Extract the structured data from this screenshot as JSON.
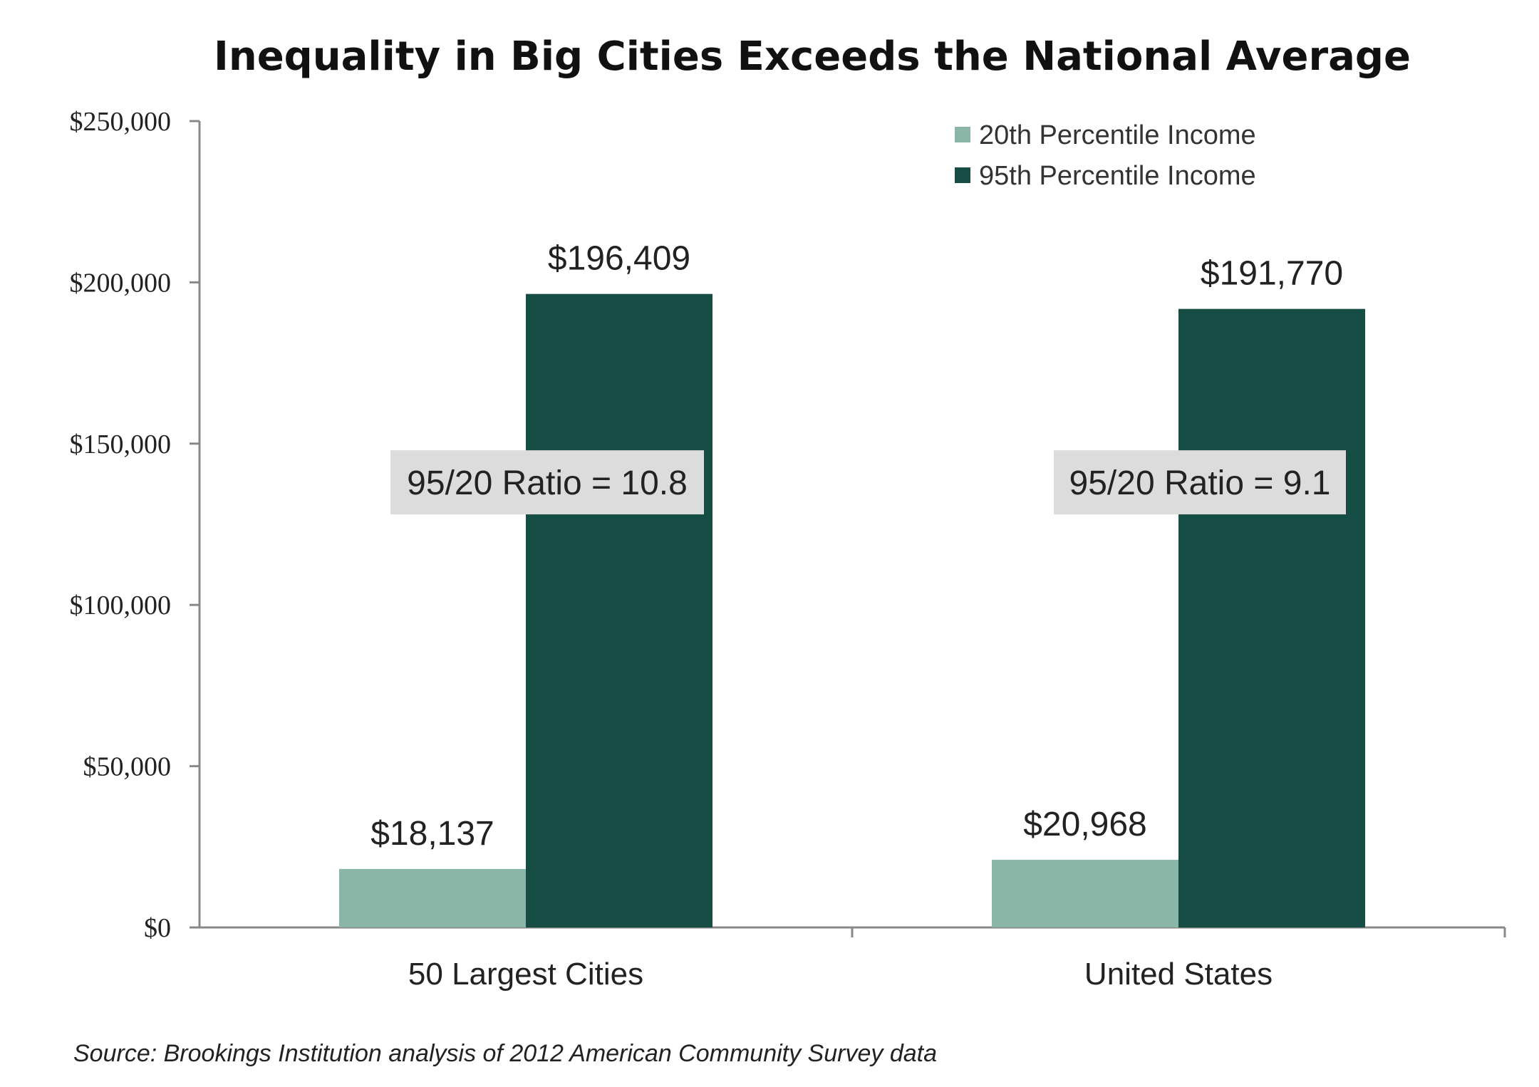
{
  "chart_data": {
    "type": "bar",
    "title": "Inequality in Big Cities Exceeds the National Average",
    "categories": [
      "50 Largest Cities",
      "United States"
    ],
    "series": [
      {
        "name": "20th Percentile Income",
        "color": "#8ab5a7",
        "values": [
          18137,
          20968
        ],
        "labels": [
          "$18,137",
          "$20,968"
        ]
      },
      {
        "name": "95th Percentile Income",
        "color": "#154c43",
        "values": [
          196409,
          191770
        ],
        "labels": [
          "$196,409",
          "$191,770"
        ]
      }
    ],
    "ylim": [
      0,
      250000
    ],
    "yticks": [
      0,
      50000,
      100000,
      150000,
      200000,
      250000
    ],
    "ytick_labels": [
      "$0",
      "$50,000",
      "$100,000",
      "$150,000",
      "$200,000",
      "$250,000"
    ],
    "xlabel": "",
    "ylabel": "",
    "grid": false,
    "legend_position": "top-right",
    "annotations": [
      "95/20 Ratio = 10.8",
      "95/20 Ratio = 9.1"
    ],
    "annotation_box_color": "#dcdcdc",
    "axis_color": "#888888",
    "source": "Source: Brookings Institution analysis of 2012 American Community Survey data"
  }
}
